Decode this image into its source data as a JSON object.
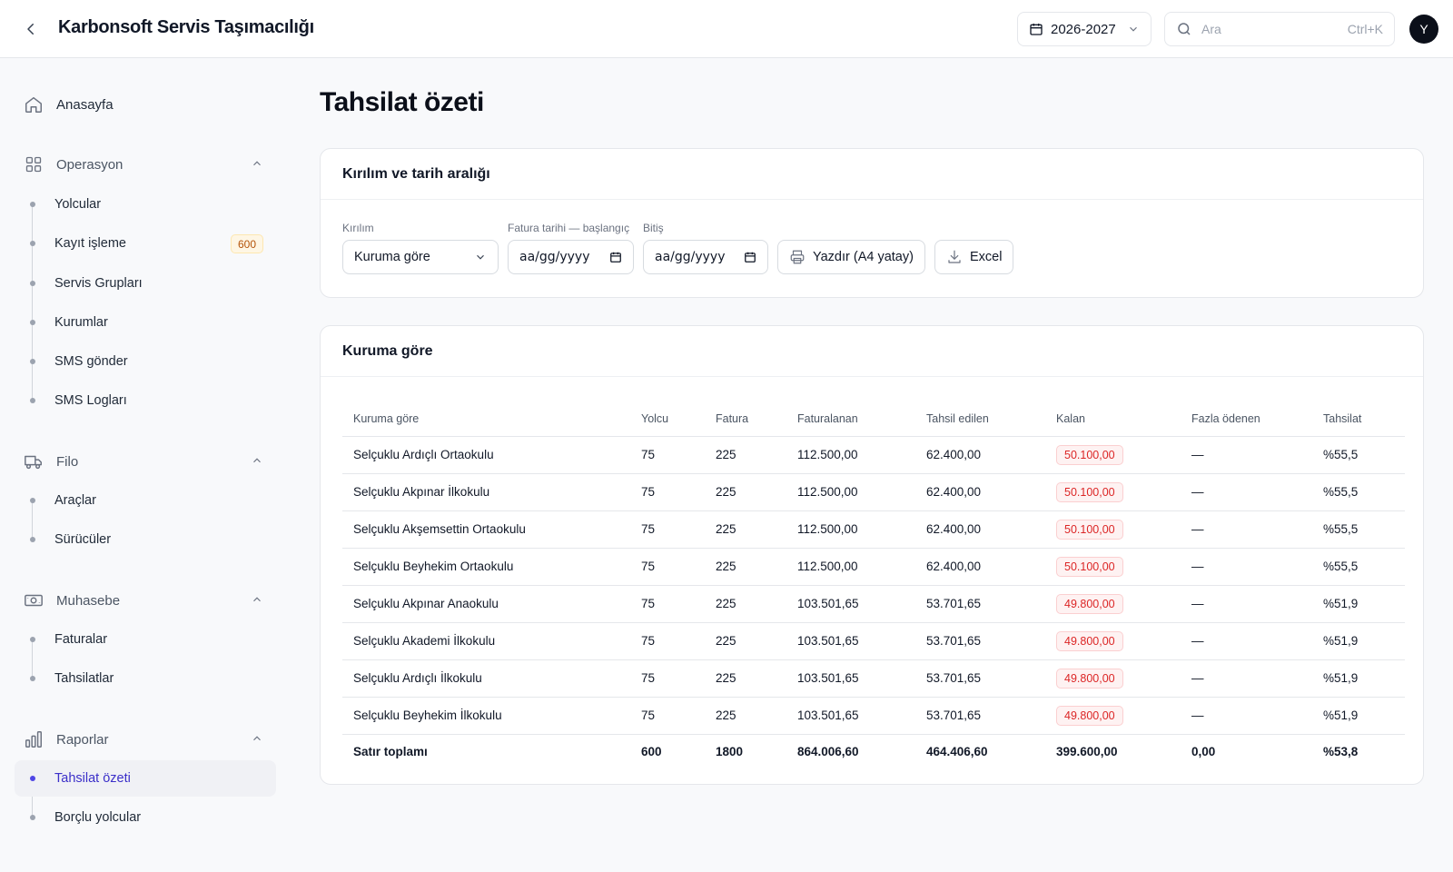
{
  "header": {
    "title": "Karbonsoft Servis Taşımacılığı",
    "year": "2026-2027",
    "search_placeholder": "Ara",
    "search_shortcut": "Ctrl+K",
    "avatar_initial": "Y"
  },
  "sidebar": {
    "home": "Anasayfa",
    "operasyon": {
      "title": "Operasyon",
      "items": [
        "Yolcular",
        "Kayıt işleme",
        "Servis Grupları",
        "Kurumlar",
        "SMS gönder",
        "SMS Logları"
      ],
      "kayit_badge": "600"
    },
    "filo": {
      "title": "Filo",
      "items": [
        "Araçlar",
        "Sürücüler"
      ]
    },
    "muhasebe": {
      "title": "Muhasebe",
      "items": [
        "Faturalar",
        "Tahsilatlar"
      ]
    },
    "raporlar": {
      "title": "Raporlar",
      "items": [
        "Tahsilat özeti",
        "Borçlu yolcular"
      ]
    }
  },
  "page": {
    "title": "Tahsilat özeti"
  },
  "filters": {
    "card_title": "Kırılım ve tarih aralığı",
    "breakdown_label": "Kırılım",
    "breakdown_value": "Kuruma göre",
    "start_label": "Fatura tarihi — başlangıç",
    "start_placeholder": "aa/gg/yyyy",
    "end_label": "Bitiş",
    "end_placeholder": "aa/gg/yyyy",
    "print_label": "Yazdır (A4 yatay)",
    "excel_label": "Excel"
  },
  "report": {
    "card_title": "Kuruma göre",
    "columns": [
      "Kuruma göre",
      "Yolcu",
      "Fatura",
      "Faturalanan",
      "Tahsil edilen",
      "Kalan",
      "Fazla ödenen",
      "Tahsilat"
    ],
    "rows": [
      [
        "Selçuklu Ardıçlı Ortaokulu",
        "75",
        "225",
        "112.500,00",
        "62.400,00",
        "50.100,00",
        "—",
        "%55,5"
      ],
      [
        "Selçuklu Akpınar İlkokulu",
        "75",
        "225",
        "112.500,00",
        "62.400,00",
        "50.100,00",
        "—",
        "%55,5"
      ],
      [
        "Selçuklu Akşemsettin Ortaokulu",
        "75",
        "225",
        "112.500,00",
        "62.400,00",
        "50.100,00",
        "—",
        "%55,5"
      ],
      [
        "Selçuklu Beyhekim Ortaokulu",
        "75",
        "225",
        "112.500,00",
        "62.400,00",
        "50.100,00",
        "—",
        "%55,5"
      ],
      [
        "Selçuklu Akpınar Anaokulu",
        "75",
        "225",
        "103.501,65",
        "53.701,65",
        "49.800,00",
        "—",
        "%51,9"
      ],
      [
        "Selçuklu Akademi İlkokulu",
        "75",
        "225",
        "103.501,65",
        "53.701,65",
        "49.800,00",
        "—",
        "%51,9"
      ],
      [
        "Selçuklu Ardıçlı İlkokulu",
        "75",
        "225",
        "103.501,65",
        "53.701,65",
        "49.800,00",
        "—",
        "%51,9"
      ],
      [
        "Selçuklu Beyhekim İlkokulu",
        "75",
        "225",
        "103.501,65",
        "53.701,65",
        "49.800,00",
        "—",
        "%51,9"
      ]
    ],
    "total": [
      "Satır toplamı",
      "600",
      "1800",
      "864.006,60",
      "464.406,60",
      "399.600,00",
      "0,00",
      "%53,8"
    ]
  },
  "colors": {
    "accent": "#4f46e5",
    "danger": "#dc2626",
    "warning_text": "#b45309"
  }
}
